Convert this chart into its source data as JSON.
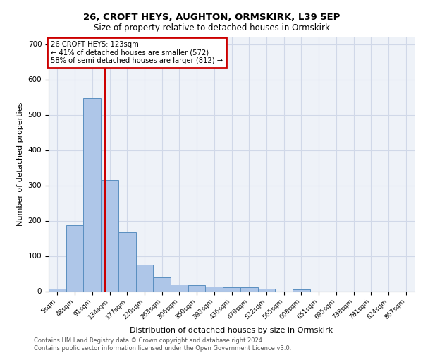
{
  "title1": "26, CROFT HEYS, AUGHTON, ORMSKIRK, L39 5EP",
  "title2": "Size of property relative to detached houses in Ormskirk",
  "xlabel": "Distribution of detached houses by size in Ormskirk",
  "ylabel": "Number of detached properties",
  "footnote1": "Contains HM Land Registry data © Crown copyright and database right 2024.",
  "footnote2": "Contains public sector information licensed under the Open Government Licence v3.0.",
  "bin_labels": [
    "5sqm",
    "48sqm",
    "91sqm",
    "134sqm",
    "177sqm",
    "220sqm",
    "263sqm",
    "306sqm",
    "350sqm",
    "393sqm",
    "436sqm",
    "479sqm",
    "522sqm",
    "565sqm",
    "608sqm",
    "651sqm",
    "695sqm",
    "738sqm",
    "781sqm",
    "824sqm",
    "867sqm"
  ],
  "bar_heights": [
    8,
    187,
    547,
    315,
    168,
    76,
    40,
    19,
    18,
    13,
    12,
    12,
    8,
    0,
    6,
    0,
    0,
    0,
    0,
    0,
    0
  ],
  "bar_color": "#aec6e8",
  "bar_edge_color": "#5a8fc0",
  "grid_color": "#d0d8e8",
  "background_color": "#eef2f8",
  "marker_label": "26 CROFT HEYS: 123sqm",
  "annotation_line1": "← 41% of detached houses are smaller (572)",
  "annotation_line2": "58% of semi-detached houses are larger (812) →",
  "annotation_box_color": "#cc0000",
  "marker_sqm": 123,
  "bin_start_sqm": [
    5,
    48,
    91,
    134,
    177,
    220,
    263,
    306,
    350,
    393,
    436,
    479,
    522,
    565,
    608,
    651,
    695,
    738,
    781,
    824,
    867
  ],
  "ylim": [
    0,
    720
  ],
  "yticks": [
    0,
    100,
    200,
    300,
    400,
    500,
    600,
    700
  ]
}
